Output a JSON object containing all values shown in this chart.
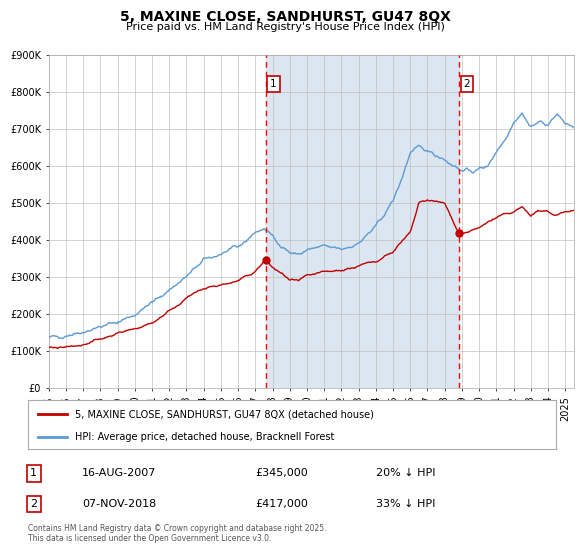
{
  "title": "5, MAXINE CLOSE, SANDHURST, GU47 8QX",
  "subtitle": "Price paid vs. HM Land Registry's House Price Index (HPI)",
  "legend_line1": "5, MAXINE CLOSE, SANDHURST, GU47 8QX (detached house)",
  "legend_line2": "HPI: Average price, detached house, Bracknell Forest",
  "footnote": "Contains HM Land Registry data © Crown copyright and database right 2025.\nThis data is licensed under the Open Government Licence v3.0.",
  "sale1_date": "16-AUG-2007",
  "sale1_price": "£345,000",
  "sale1_hpi": "20% ↓ HPI",
  "sale2_date": "07-NOV-2018",
  "sale2_price": "£417,000",
  "sale2_hpi": "33% ↓ HPI",
  "sale1_x": 2007.62,
  "sale1_y": 345000,
  "sale2_x": 2018.85,
  "sale2_y": 417000,
  "vline1_x": 2007.62,
  "vline2_x": 2018.85,
  "hpi_color": "#5b9bd5",
  "price_color": "#c00000",
  "sale_dot_color": "#c00000",
  "vline_color": "#ff0000",
  "shade_color": "#dce6f1",
  "background_color": "#ffffff",
  "grid_color": "#c0c0c0",
  "ylim": [
    0,
    900000
  ],
  "xlim": [
    1995,
    2025.5
  ],
  "yticks": [
    0,
    100000,
    200000,
    300000,
    400000,
    500000,
    600000,
    700000,
    800000,
    900000
  ],
  "ytick_labels": [
    "£0",
    "£100K",
    "£200K",
    "£300K",
    "£400K",
    "£500K",
    "£600K",
    "£700K",
    "£800K",
    "£900K"
  ],
  "xticks": [
    1995,
    1996,
    1997,
    1998,
    1999,
    2000,
    2001,
    2002,
    2003,
    2004,
    2005,
    2006,
    2007,
    2008,
    2009,
    2010,
    2011,
    2012,
    2013,
    2014,
    2015,
    2016,
    2017,
    2018,
    2019,
    2020,
    2021,
    2022,
    2023,
    2024,
    2025
  ],
  "hpi_anchors_x": [
    1995,
    1996,
    1997,
    1998,
    1999,
    2000,
    2001,
    2002,
    2003,
    2004,
    2005,
    2006,
    2007,
    2007.5,
    2008,
    2008.5,
    2009,
    2009.5,
    2010,
    2011,
    2012,
    2013,
    2014,
    2015,
    2015.5,
    2016,
    2016.5,
    2017,
    2017.5,
    2018,
    2018.5,
    2019,
    2019.5,
    2020,
    2020.5,
    2021,
    2021.5,
    2022,
    2022.5,
    2023,
    2023.5,
    2024,
    2024.5,
    2025,
    2025.5
  ],
  "hpi_anchors_y": [
    135000,
    142000,
    152000,
    165000,
    178000,
    198000,
    230000,
    265000,
    300000,
    345000,
    362000,
    380000,
    420000,
    430000,
    410000,
    385000,
    365000,
    360000,
    372000,
    382000,
    375000,
    390000,
    435000,
    505000,
    565000,
    635000,
    648000,
    642000,
    630000,
    618000,
    600000,
    588000,
    585000,
    590000,
    600000,
    640000,
    670000,
    720000,
    742000,
    705000,
    718000,
    712000,
    738000,
    715000,
    705000
  ],
  "price_anchors_x": [
    1995,
    1996,
    1997,
    1998,
    1999,
    2000,
    2001,
    2002,
    2003,
    2004,
    2005,
    2006,
    2007,
    2007.62,
    2008,
    2009,
    2009.5,
    2010,
    2011,
    2012,
    2013,
    2014,
    2015,
    2016,
    2016.5,
    2017,
    2017.5,
    2018,
    2018.85,
    2019.5,
    2020,
    2020.5,
    2021,
    2021.5,
    2022,
    2022.5,
    2023,
    2023.5,
    2024,
    2024.5,
    2025,
    2025.5
  ],
  "price_anchors_y": [
    108000,
    108000,
    118000,
    132000,
    148000,
    160000,
    175000,
    208000,
    242000,
    268000,
    278000,
    288000,
    315000,
    345000,
    325000,
    292000,
    287000,
    302000,
    313000,
    318000,
    328000,
    343000,
    368000,
    418000,
    498000,
    508000,
    502000,
    498000,
    417000,
    422000,
    432000,
    448000,
    458000,
    468000,
    473000,
    488000,
    468000,
    478000,
    473000,
    468000,
    478000,
    478000
  ]
}
